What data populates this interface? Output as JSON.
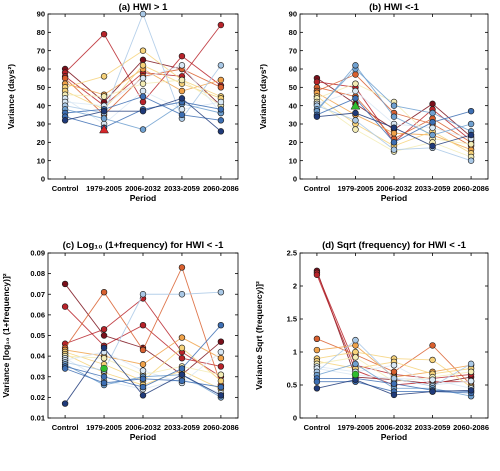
{
  "colors": {
    "palette": [
      "#1f3a7a",
      "#3d6fb4",
      "#6fa0d0",
      "#a9c8e6",
      "#d9e8f5",
      "#f3ecb5",
      "#f6d27a",
      "#f0a24a",
      "#d9602f",
      "#b8232a",
      "#7a0f1a"
    ],
    "green_marker": "#2ebd2e",
    "red_marker": "#d7262a",
    "axis": "#000000"
  },
  "chart_data": [
    {
      "type": "line",
      "title": "(a) HWI > 1",
      "xlabel": "Period",
      "ylabel": "Variance (days²)",
      "ylim": [
        0,
        90
      ],
      "yticks": [
        0,
        10,
        20,
        30,
        40,
        50,
        60,
        70,
        80,
        90
      ],
      "categories": [
        "Control",
        "1979-2005",
        "2006-2032",
        "2033-2059",
        "2060-2086"
      ],
      "highlight": {
        "shape": "triangle",
        "color": "#d7262a",
        "index": 1,
        "value": 27
      },
      "series": [
        {
          "values": [
            60,
            42,
            65,
            60,
            40
          ]
        },
        {
          "values": [
            58,
            79,
            42,
            67,
            51
          ]
        },
        {
          "values": [
            56,
            40,
            58,
            56,
            84
          ]
        },
        {
          "values": [
            55,
            35,
            56,
            60,
            50
          ]
        },
        {
          "values": [
            52,
            46,
            60,
            48,
            54
          ]
        },
        {
          "values": [
            50,
            56,
            70,
            54,
            45
          ]
        },
        {
          "values": [
            48,
            38,
            62,
            52,
            44
          ]
        },
        {
          "values": [
            46,
            45,
            52,
            54,
            40
          ]
        },
        {
          "values": [
            44,
            30,
            48,
            38,
            42
          ]
        },
        {
          "values": [
            42,
            40,
            55,
            62,
            36
          ]
        },
        {
          "values": [
            40,
            36,
            90,
            33,
            62
          ]
        },
        {
          "values": [
            38,
            33,
            27,
            41,
            36
          ]
        },
        {
          "values": [
            36,
            38,
            45,
            35,
            32
          ]
        },
        {
          "values": [
            34,
            28,
            38,
            42,
            38
          ]
        },
        {
          "values": [
            32,
            37,
            37,
            44,
            26
          ]
        }
      ]
    },
    {
      "type": "line",
      "title": "(b) HWI <-1",
      "xlabel": "Period",
      "ylabel": "Variance (days²)",
      "ylim": [
        0,
        90
      ],
      "yticks": [
        0,
        10,
        20,
        30,
        40,
        50,
        60,
        70,
        80,
        90
      ],
      "categories": [
        "Control",
        "1979-2005",
        "2006-2032",
        "2033-2059",
        "2060-2086"
      ],
      "highlight": {
        "shape": "triangle",
        "color": "#2ebd2e",
        "index": 1,
        "value": 40
      },
      "series": [
        {
          "values": [
            55,
            41,
            27,
            41,
            23
          ]
        },
        {
          "values": [
            53,
            50,
            20,
            38,
            21
          ]
        },
        {
          "values": [
            50,
            45,
            22,
            33,
            20
          ]
        },
        {
          "values": [
            48,
            57,
            36,
            30,
            18
          ]
        },
        {
          "values": [
            47,
            35,
            25,
            24,
            16
          ]
        },
        {
          "values": [
            45,
            30,
            18,
            26,
            14
          ]
        },
        {
          "values": [
            44,
            52,
            42,
            22,
            19
          ]
        },
        {
          "values": [
            42,
            27,
            15,
            20,
            12
          ]
        },
        {
          "values": [
            41,
            48,
            30,
            28,
            22
          ]
        },
        {
          "values": [
            40,
            32,
            16,
            17,
            10
          ]
        },
        {
          "values": [
            38,
            60,
            40,
            36,
            26
          ]
        },
        {
          "values": [
            37,
            62,
            34,
            24,
            30
          ]
        },
        {
          "values": [
            35,
            44,
            20,
            31,
            37
          ]
        },
        {
          "values": [
            34,
            36,
            28,
            18,
            24
          ]
        }
      ]
    },
    {
      "type": "line",
      "title": "(c) Log₁₀ (1+frequency) for HWI < -1",
      "xlabel": "Period",
      "ylabel": "Variance [log₁₀ (1+frequency)]²",
      "ylim": [
        0.01,
        0.09
      ],
      "yticks": [
        0.01,
        0.02,
        0.03,
        0.04,
        0.05,
        0.06,
        0.07,
        0.08,
        0.09
      ],
      "categories": [
        "Control",
        "1979-2005",
        "2006-2032",
        "2033-2059",
        "2060-2086"
      ],
      "highlight": {
        "shape": "circle",
        "color": "#2ebd2e",
        "index": 1,
        "value": 0.034
      },
      "series": [
        {
          "values": [
            0.075,
            0.05,
            0.044,
            0.031,
            0.047
          ]
        },
        {
          "values": [
            0.064,
            0.045,
            0.055,
            0.039,
            0.035
          ]
        },
        {
          "values": [
            0.046,
            0.053,
            0.068,
            0.042,
            0.03
          ]
        },
        {
          "values": [
            0.044,
            0.071,
            0.043,
            0.083,
            0.026
          ]
        },
        {
          "values": [
            0.043,
            0.04,
            0.036,
            0.049,
            0.039
          ]
        },
        {
          "values": [
            0.042,
            0.036,
            0.028,
            0.044,
            0.028
          ]
        },
        {
          "values": [
            0.041,
            0.032,
            0.026,
            0.033,
            0.024
          ]
        },
        {
          "values": [
            0.04,
            0.039,
            0.031,
            0.035,
            0.031
          ]
        },
        {
          "values": [
            0.039,
            0.028,
            0.024,
            0.029,
            0.022
          ]
        },
        {
          "values": [
            0.038,
            0.042,
            0.033,
            0.027,
            0.042
          ]
        },
        {
          "values": [
            0.037,
            0.033,
            0.07,
            0.07,
            0.071
          ]
        },
        {
          "values": [
            0.036,
            0.026,
            0.03,
            0.031,
            0.02
          ]
        },
        {
          "values": [
            0.035,
            0.03,
            0.025,
            0.034,
            0.055
          ]
        },
        {
          "values": [
            0.034,
            0.027,
            0.029,
            0.028,
            0.025
          ]
        },
        {
          "values": [
            0.017,
            0.044,
            0.021,
            0.031,
            0.021
          ]
        }
      ]
    },
    {
      "type": "line",
      "title": "(d) Sqrt (frequency) for HWI < -1",
      "xlabel": "Period",
      "ylabel": "Variance Sqrt (frequency)]²",
      "ylim": [
        0,
        2.5
      ],
      "yticks": [
        0,
        0.5,
        1,
        1.5,
        2,
        2.5
      ],
      "categories": [
        "Control",
        "1979-2005",
        "2006-2032",
        "2033-2059",
        "2060-2086"
      ],
      "highlight": {
        "shape": "circle",
        "color": "#2ebd2e",
        "index": 1,
        "value": 0.66
      },
      "series": [
        {
          "values": [
            2.23,
            0.62,
            0.58,
            0.52,
            0.62
          ]
        },
        {
          "values": [
            2.2,
            0.8,
            0.66,
            0.6,
            0.66
          ]
        },
        {
          "values": [
            2.17,
            0.72,
            0.5,
            0.55,
            0.55
          ]
        },
        {
          "values": [
            1.2,
            0.96,
            0.7,
            1.1,
            0.5
          ]
        },
        {
          "values": [
            1.03,
            1.1,
            0.62,
            0.7,
            0.8
          ]
        },
        {
          "values": [
            0.9,
            1.0,
            0.9,
            0.88,
            0.47
          ]
        },
        {
          "values": [
            0.86,
            0.75,
            0.85,
            0.67,
            0.75
          ]
        },
        {
          "values": [
            0.82,
            0.92,
            0.55,
            0.62,
            0.7
          ]
        },
        {
          "values": [
            0.78,
            0.7,
            0.8,
            0.5,
            0.56
          ]
        },
        {
          "values": [
            0.75,
            0.65,
            0.6,
            0.58,
            0.45
          ]
        },
        {
          "values": [
            0.7,
            1.18,
            0.6,
            0.48,
            0.82
          ]
        },
        {
          "values": [
            0.65,
            0.82,
            0.45,
            0.45,
            0.33
          ]
        },
        {
          "values": [
            0.6,
            0.6,
            0.52,
            0.42,
            0.4
          ]
        },
        {
          "values": [
            0.55,
            0.55,
            0.4,
            0.4,
            0.38
          ]
        },
        {
          "values": [
            0.45,
            0.58,
            0.35,
            0.4,
            0.42
          ]
        }
      ]
    }
  ]
}
